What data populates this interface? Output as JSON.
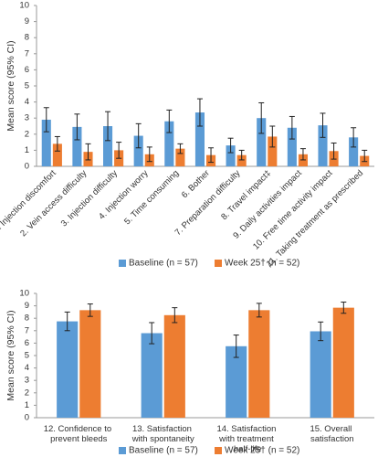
{
  "chart_data": [
    {
      "type": "bar",
      "ylabel": "Mean score (95% CI)",
      "categories": [
        "1. Injection discomfort",
        "2. Vein access difficulty",
        "3. Injection difficulty",
        "4. Injection worry",
        "5. Time consuming",
        "6. Bother",
        "7. Preparation difficulty",
        "8. Travel impact‡",
        "9. Daily activities impact",
        "10. Free time activity impact",
        "11. Taking treatment as prescribed"
      ],
      "series": [
        {
          "name": "Baseline (n = 57)",
          "color": "#5b9bd5",
          "values": [
            2.9,
            2.45,
            2.5,
            1.9,
            2.8,
            3.35,
            1.3,
            3.0,
            2.4,
            2.55,
            1.8
          ],
          "errors": [
            0.75,
            0.8,
            0.9,
            0.75,
            0.7,
            0.85,
            0.45,
            0.95,
            0.7,
            0.75,
            0.6
          ]
        },
        {
          "name": "Week 25† (n = 52)",
          "color": "#ed7d31",
          "values": [
            1.4,
            0.9,
            1.0,
            0.75,
            1.1,
            0.7,
            0.7,
            1.85,
            0.75,
            0.95,
            0.65
          ],
          "errors": [
            0.45,
            0.5,
            0.5,
            0.45,
            0.3,
            0.45,
            0.3,
            0.65,
            0.35,
            0.5,
            0.35
          ]
        }
      ],
      "ylim": [
        0,
        10
      ],
      "yticks": [
        0,
        1,
        2,
        3,
        4,
        5,
        6,
        7,
        8,
        9,
        10
      ],
      "grid": false,
      "legend": "bottom"
    },
    {
      "type": "bar",
      "ylabel": "Mean score (95% CI)",
      "categories": [
        "12. Confidence to prevent bleeds",
        "13. Satisfaction with spontaneity",
        "14. Satisfaction with treatment half-life",
        "15. Overall satisfaction"
      ],
      "series": [
        {
          "name": "Baseline (n = 57)",
          "color": "#5b9bd5",
          "values": [
            7.75,
            6.8,
            5.75,
            6.95
          ],
          "errors": [
            0.75,
            0.85,
            0.9,
            0.75
          ]
        },
        {
          "name": "Week 25† (n = 52)",
          "color": "#ed7d31",
          "values": [
            8.65,
            8.25,
            8.65,
            8.85
          ],
          "errors": [
            0.5,
            0.6,
            0.55,
            0.45
          ]
        }
      ],
      "ylim": [
        0,
        10
      ],
      "yticks": [
        0,
        1,
        2,
        3,
        4,
        5,
        6,
        7,
        8,
        9,
        10
      ],
      "grid": false,
      "legend": "bottom"
    }
  ]
}
